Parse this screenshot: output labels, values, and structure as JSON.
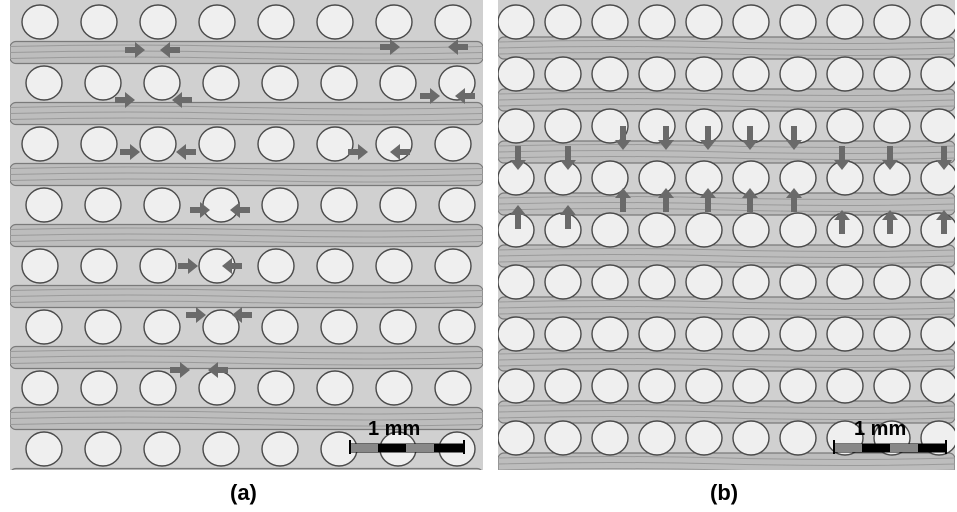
{
  "panels": [
    {
      "id": "a",
      "caption": "(a)",
      "scale_label": "1 mm",
      "arrow_orientation": "horizontal"
    },
    {
      "id": "b",
      "caption": "(b)",
      "scale_label": "1 mm",
      "arrow_orientation": "vertical"
    }
  ],
  "colors": {
    "background": "#d0d0d0",
    "fiber": "#bdbdbd",
    "circle_fill": "#efefef",
    "circle_stroke": "#4a4a4a",
    "arrow": "#6a6a6a"
  }
}
